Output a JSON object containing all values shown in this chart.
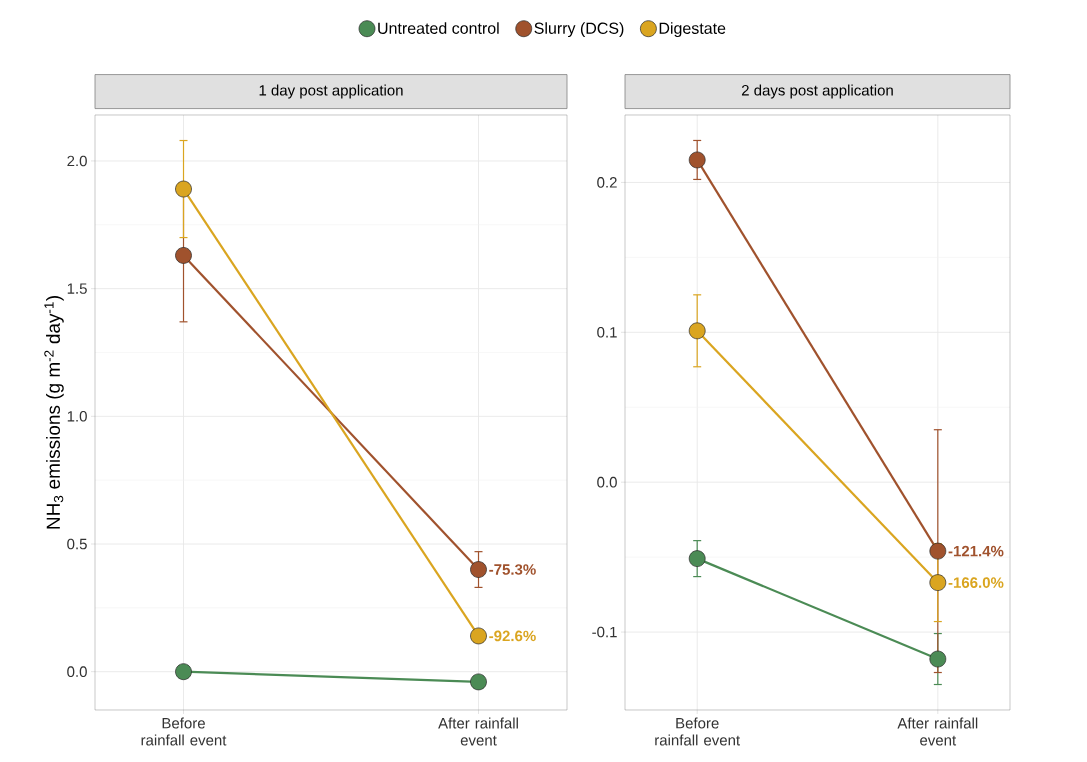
{
  "chart_data": [
    {
      "type": "line",
      "title": "1 day post application",
      "ylabel": "NH$_{3}$ emissions (g m$^{-2}$ day$^{-1}$)",
      "categories": [
        "Before rainfall event",
        "After rainfall event"
      ],
      "series": [
        {
          "name": "Untreated control",
          "color": "#4b8b55",
          "values": [
            0.0,
            -0.04
          ],
          "errors": [
            null,
            null
          ]
        },
        {
          "name": "Slurry (DCS)",
          "color": "#a0522d",
          "values": [
            1.63,
            0.4
          ],
          "errors": [
            0.26,
            0.07
          ]
        },
        {
          "name": "Digestate",
          "color": "#daa520",
          "values": [
            1.89,
            0.14
          ],
          "errors": [
            0.19,
            null
          ]
        }
      ],
      "ylim": [
        -0.15,
        2.18
      ],
      "yticks": [
        {
          "value": 0,
          "label": "0.0"
        },
        {
          "value": 0.5,
          "label": "0.5"
        },
        {
          "value": 1,
          "label": "1.0"
        },
        {
          "value": 1.5,
          "label": "1.5"
        },
        {
          "value": 2,
          "label": "2.0"
        }
      ],
      "annotations": [
        {
          "text": "-75.3%",
          "x": "After rainfall event",
          "y": 0.4
        },
        {
          "text": "-92.6%",
          "x": "After rainfall event",
          "y": 0.14
        }
      ],
      "grid": true,
      "legend": "top",
      "marker": "circle"
    },
    {
      "type": "line",
      "title": "2 days post application",
      "categories": [
        "Before rainfall event",
        "After rainfall event"
      ],
      "series": [
        {
          "color": "#4b8b55",
          "values": [
            -0.051,
            -0.118
          ],
          "errors": [
            0.012,
            0.017
          ]
        },
        {
          "color": "#a0522d",
          "values": [
            0.215,
            -0.046
          ],
          "errors": [
            0.013,
            0.081
          ]
        },
        {
          "color": "#daa520",
          "values": [
            0.101,
            -0.067
          ],
          "errors": [
            0.024,
            0.026
          ]
        }
      ],
      "ylim": [
        -0.152,
        0.245
      ],
      "yticks": [
        {
          "value": -0.1,
          "label": "-0.1"
        },
        {
          "value": 0,
          "label": "0.0"
        },
        0.1,
        0.2
      ],
      "annotations": [
        {
          "text": "-121.4%",
          "x": "After rainfall event",
          "y": -0.046
        },
        {
          "text": "-166.0%",
          "x": "After rainfall event",
          "y": -0.067
        }
      ],
      "grid": true,
      "marker": "circle"
    }
  ]
}
